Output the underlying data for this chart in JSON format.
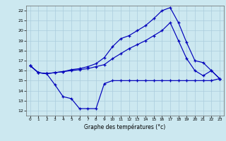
{
  "xlabel": "Graphe des températures (°c)",
  "background_color": "#cce8f0",
  "grid_color": "#aaccdd",
  "line_color": "#0000bb",
  "xlim": [
    -0.5,
    23.5
  ],
  "ylim": [
    11.5,
    22.5
  ],
  "xticks": [
    0,
    1,
    2,
    3,
    4,
    5,
    6,
    7,
    8,
    9,
    10,
    11,
    12,
    13,
    14,
    15,
    16,
    17,
    18,
    19,
    20,
    21,
    22,
    23
  ],
  "yticks": [
    12,
    13,
    14,
    15,
    16,
    17,
    18,
    19,
    20,
    21,
    22
  ],
  "line1_x": [
    0,
    1,
    2,
    3,
    4,
    5,
    6,
    7,
    8,
    9,
    10,
    11,
    12,
    13,
    14,
    15,
    16,
    17,
    18,
    19,
    20,
    21,
    22,
    23
  ],
  "line1_y": [
    16.5,
    15.8,
    15.7,
    14.6,
    13.4,
    13.2,
    12.2,
    12.2,
    12.2,
    14.7,
    15.0,
    15.0,
    15.0,
    15.0,
    15.0,
    15.0,
    15.0,
    15.0,
    15.0,
    15.0,
    15.0,
    15.0,
    15.0,
    15.2
  ],
  "line2_x": [
    0,
    1,
    2,
    3,
    4,
    5,
    6,
    7,
    8,
    9,
    10,
    11,
    12,
    13,
    14,
    15,
    16,
    17,
    18,
    19,
    20,
    21,
    22,
    23
  ],
  "line2_y": [
    16.5,
    15.8,
    15.7,
    15.8,
    15.9,
    16.0,
    16.1,
    16.2,
    16.4,
    16.6,
    17.2,
    17.7,
    18.2,
    18.6,
    19.0,
    19.5,
    20.0,
    20.8,
    19.0,
    17.2,
    16.0,
    15.5,
    16.0,
    15.2
  ],
  "line3_x": [
    0,
    1,
    2,
    3,
    4,
    5,
    6,
    7,
    8,
    9,
    10,
    11,
    12,
    13,
    14,
    15,
    16,
    17,
    18,
    19,
    20,
    21,
    22,
    23
  ],
  "line3_y": [
    16.5,
    15.8,
    15.7,
    15.8,
    15.9,
    16.1,
    16.2,
    16.4,
    16.7,
    17.3,
    18.4,
    19.2,
    19.5,
    20.0,
    20.5,
    21.2,
    22.0,
    22.3,
    20.8,
    18.8,
    17.0,
    16.8,
    16.0,
    15.2
  ]
}
